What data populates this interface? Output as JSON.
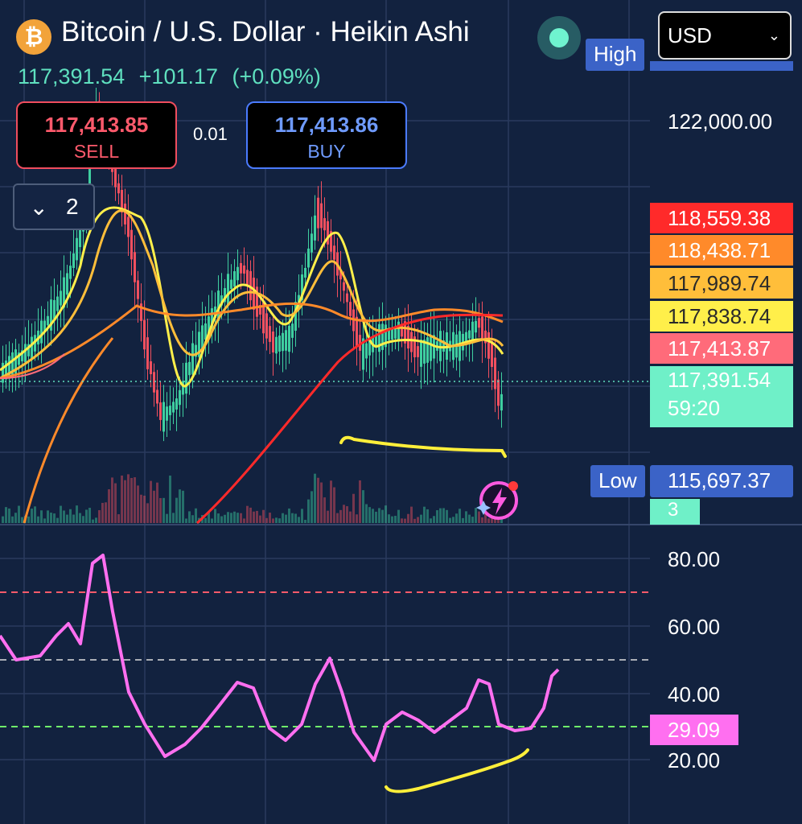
{
  "header": {
    "logo_glyph": "₿",
    "title": "Bitcoin / U.S. Dollar · Heikin Ashi",
    "last_price": "117,391.54",
    "change": "+101.17",
    "change_pct": "(+0.09%)",
    "currency": "USD"
  },
  "trade": {
    "sell_price": "117,413.85",
    "sell_label": "SELL",
    "spread": "0.01",
    "buy_price": "117,413.86",
    "buy_label": "BUY"
  },
  "indicators_count": "2",
  "price_axis": {
    "high_label": "High",
    "low_label": "Low",
    "low_value": "115,697.37",
    "tick_122000": "122,000.00",
    "ma_tags": [
      {
        "value": "118,559.38",
        "bg": "#ff2a2a",
        "fg": "#ffffff"
      },
      {
        "value": "118,438.71",
        "bg": "#ff8a2a",
        "fg": "#ffffff"
      },
      {
        "value": "117,989.74",
        "bg": "#ffbe3a",
        "fg": "#2a2a2a"
      },
      {
        "value": "117,838.74",
        "bg": "#ffef4a",
        "fg": "#2a2a2a"
      },
      {
        "value": "117,413.87",
        "bg": "#ff6b7a",
        "fg": "#ffffff"
      }
    ],
    "current_price": "117,391.54",
    "countdown": "59:20",
    "volume_tag": "3"
  },
  "rsi_axis": {
    "ticks": [
      "80.00",
      "60.00",
      "40.00",
      "20.00"
    ],
    "current": "29.09"
  },
  "colors": {
    "background": "#12223f",
    "up_candle": "#3fcfa0",
    "down_candle": "#f0505f",
    "rsi_line": "#ff6ff0",
    "annotation": "#ffef3a"
  }
}
